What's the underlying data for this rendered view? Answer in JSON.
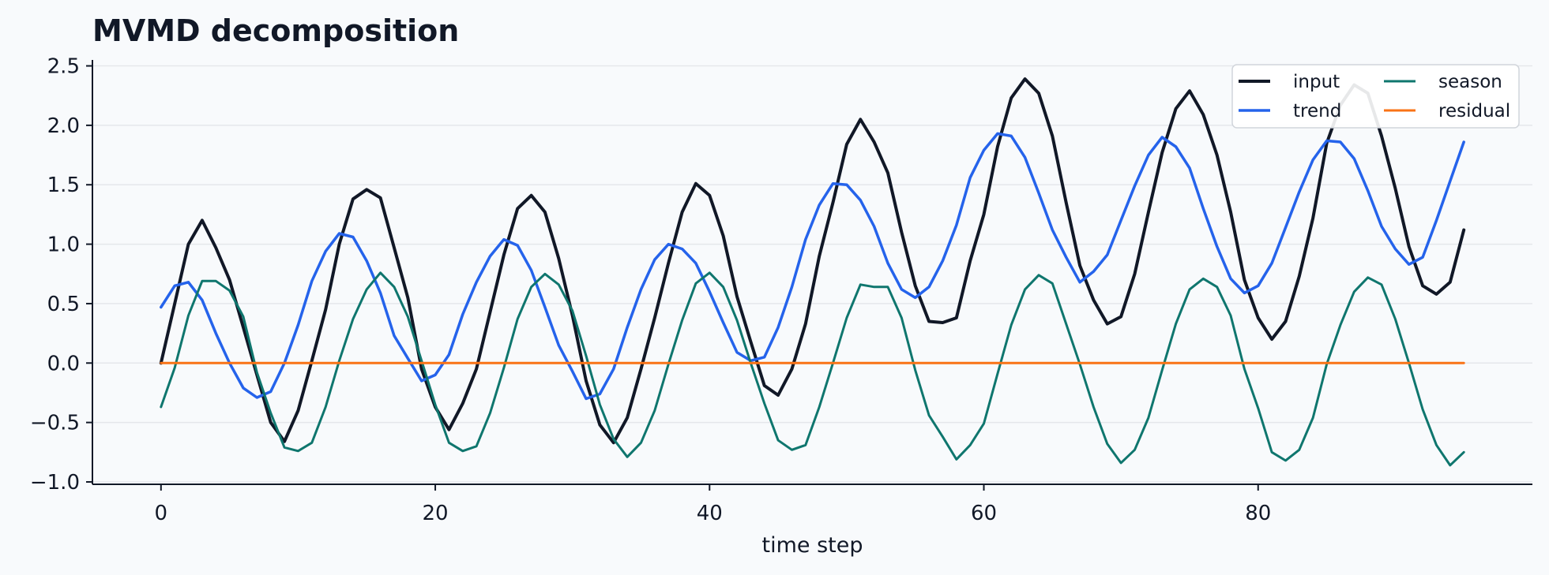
{
  "chart_data": {
    "type": "line",
    "title": "MVMD decomposition",
    "xlabel": "time step",
    "ylabel": "",
    "xlim": [
      -5,
      100
    ],
    "ylim": [
      -1.02,
      2.55
    ],
    "xticks": [
      0,
      20,
      40,
      60,
      80
    ],
    "yticks": [
      -1.0,
      -0.5,
      0.0,
      0.5,
      1.0,
      1.5,
      2.0,
      2.5
    ],
    "grid": "horizontal",
    "legend_position": "top-right",
    "legend_columns": 2,
    "x": [
      0,
      1,
      2,
      3,
      4,
      5,
      6,
      7,
      8,
      9,
      10,
      11,
      12,
      13,
      14,
      15,
      16,
      17,
      18,
      19,
      20,
      21,
      22,
      23,
      24,
      25,
      26,
      27,
      28,
      29,
      30,
      31,
      32,
      33,
      34,
      35,
      36,
      37,
      38,
      39,
      40,
      41,
      42,
      43,
      44,
      45,
      46,
      47,
      48,
      49,
      50,
      51,
      52,
      53,
      54,
      55,
      56,
      57,
      58,
      59,
      60,
      61,
      62,
      63,
      64,
      65,
      66,
      67,
      68,
      69,
      70,
      71,
      72,
      73,
      74,
      75,
      76,
      77,
      78,
      79,
      80,
      81,
      82,
      83,
      84,
      85,
      86,
      87,
      88,
      89,
      90,
      91,
      92,
      93,
      94,
      95
    ],
    "series": [
      {
        "name": "input",
        "color": "#111827",
        "width": 4,
        "values": [
          0.0,
          0.5,
          1.0,
          1.2,
          0.97,
          0.7,
          0.3,
          -0.1,
          -0.5,
          -0.66,
          -0.4,
          0.02,
          0.45,
          1.0,
          1.38,
          1.46,
          1.39,
          0.97,
          0.55,
          -0.05,
          -0.37,
          -0.56,
          -0.34,
          -0.05,
          0.43,
          0.91,
          1.3,
          1.41,
          1.27,
          0.88,
          0.4,
          -0.15,
          -0.52,
          -0.67,
          -0.46,
          -0.05,
          0.38,
          0.84,
          1.27,
          1.51,
          1.41,
          1.07,
          0.56,
          0.18,
          -0.19,
          -0.27,
          -0.05,
          0.33,
          0.9,
          1.35,
          1.84,
          2.05,
          1.86,
          1.6,
          1.1,
          0.65,
          0.35,
          0.34,
          0.38,
          0.86,
          1.25,
          1.82,
          2.23,
          2.39,
          2.27,
          1.91,
          1.35,
          0.82,
          0.53,
          0.33,
          0.39,
          0.75,
          1.27,
          1.77,
          2.14,
          2.29,
          2.09,
          1.75,
          1.27,
          0.7,
          0.38,
          0.2,
          0.35,
          0.73,
          1.22,
          1.85,
          2.17,
          2.34,
          2.27,
          1.91,
          1.47,
          0.98,
          0.65,
          0.58,
          0.68,
          1.12
        ]
      },
      {
        "name": "trend",
        "color": "#2563eb",
        "width": 3.5,
        "values": [
          0.47,
          0.65,
          0.68,
          0.53,
          0.25,
          -0.0,
          -0.21,
          -0.29,
          -0.24,
          0.0,
          0.32,
          0.69,
          0.94,
          1.09,
          1.06,
          0.86,
          0.59,
          0.23,
          0.04,
          -0.15,
          -0.1,
          0.07,
          0.41,
          0.68,
          0.9,
          1.04,
          0.99,
          0.78,
          0.47,
          0.15,
          -0.07,
          -0.3,
          -0.26,
          -0.05,
          0.3,
          0.62,
          0.87,
          1.0,
          0.96,
          0.84,
          0.6,
          0.34,
          0.09,
          0.02,
          0.05,
          0.3,
          0.64,
          1.04,
          1.33,
          1.51,
          1.5,
          1.37,
          1.15,
          0.84,
          0.62,
          0.55,
          0.64,
          0.86,
          1.16,
          1.56,
          1.79,
          1.93,
          1.91,
          1.73,
          1.43,
          1.12,
          0.89,
          0.68,
          0.77,
          0.91,
          1.2,
          1.49,
          1.75,
          1.9,
          1.82,
          1.64,
          1.3,
          0.98,
          0.71,
          0.59,
          0.65,
          0.84,
          1.14,
          1.44,
          1.71,
          1.87,
          1.86,
          1.72,
          1.45,
          1.15,
          0.96,
          0.83,
          0.89,
          1.2,
          1.53,
          1.86
        ]
      },
      {
        "name": "season",
        "color": "#0f766e",
        "width": 3,
        "values": [
          -0.37,
          -0.04,
          0.4,
          0.69,
          0.69,
          0.61,
          0.39,
          -0.08,
          -0.42,
          -0.71,
          -0.74,
          -0.67,
          -0.37,
          0.02,
          0.37,
          0.62,
          0.76,
          0.64,
          0.39,
          0.02,
          -0.35,
          -0.67,
          -0.74,
          -0.7,
          -0.42,
          -0.04,
          0.37,
          0.64,
          0.75,
          0.66,
          0.44,
          0.06,
          -0.35,
          -0.64,
          -0.79,
          -0.67,
          -0.4,
          -0.01,
          0.36,
          0.67,
          0.76,
          0.64,
          0.36,
          -0.0,
          -0.34,
          -0.65,
          -0.73,
          -0.69,
          -0.37,
          0.0,
          0.38,
          0.66,
          0.64,
          0.64,
          0.38,
          -0.06,
          -0.44,
          -0.62,
          -0.81,
          -0.69,
          -0.51,
          -0.09,
          0.32,
          0.62,
          0.74,
          0.67,
          0.33,
          -0.01,
          -0.37,
          -0.68,
          -0.84,
          -0.73,
          -0.46,
          -0.06,
          0.33,
          0.62,
          0.71,
          0.64,
          0.4,
          -0.05,
          -0.38,
          -0.75,
          -0.82,
          -0.73,
          -0.46,
          -0.01,
          0.32,
          0.6,
          0.72,
          0.66,
          0.37,
          -0.0,
          -0.39,
          -0.69,
          -0.86,
          -0.75
        ]
      },
      {
        "name": "residual",
        "color": "#f97316",
        "width": 3,
        "values": [
          0,
          0,
          0,
          0,
          0,
          0,
          0,
          0,
          0,
          0,
          0,
          0,
          0,
          0,
          0,
          0,
          0,
          0,
          0,
          0,
          0,
          0,
          0,
          0,
          0,
          0,
          0,
          0,
          0,
          0,
          0,
          0,
          0,
          0,
          0,
          0,
          0,
          0,
          0,
          0,
          0,
          0,
          0,
          0,
          0,
          0,
          0,
          0,
          0,
          0,
          0,
          0,
          0,
          0,
          0,
          0,
          0,
          0,
          0,
          0,
          0,
          0,
          0,
          0,
          0,
          0,
          0,
          0,
          0,
          0,
          0,
          0,
          0,
          0,
          0,
          0,
          0,
          0,
          0,
          0,
          0,
          0,
          0,
          0,
          0,
          0,
          0,
          0,
          0,
          0,
          0,
          0,
          0,
          0,
          0,
          0
        ]
      }
    ]
  }
}
